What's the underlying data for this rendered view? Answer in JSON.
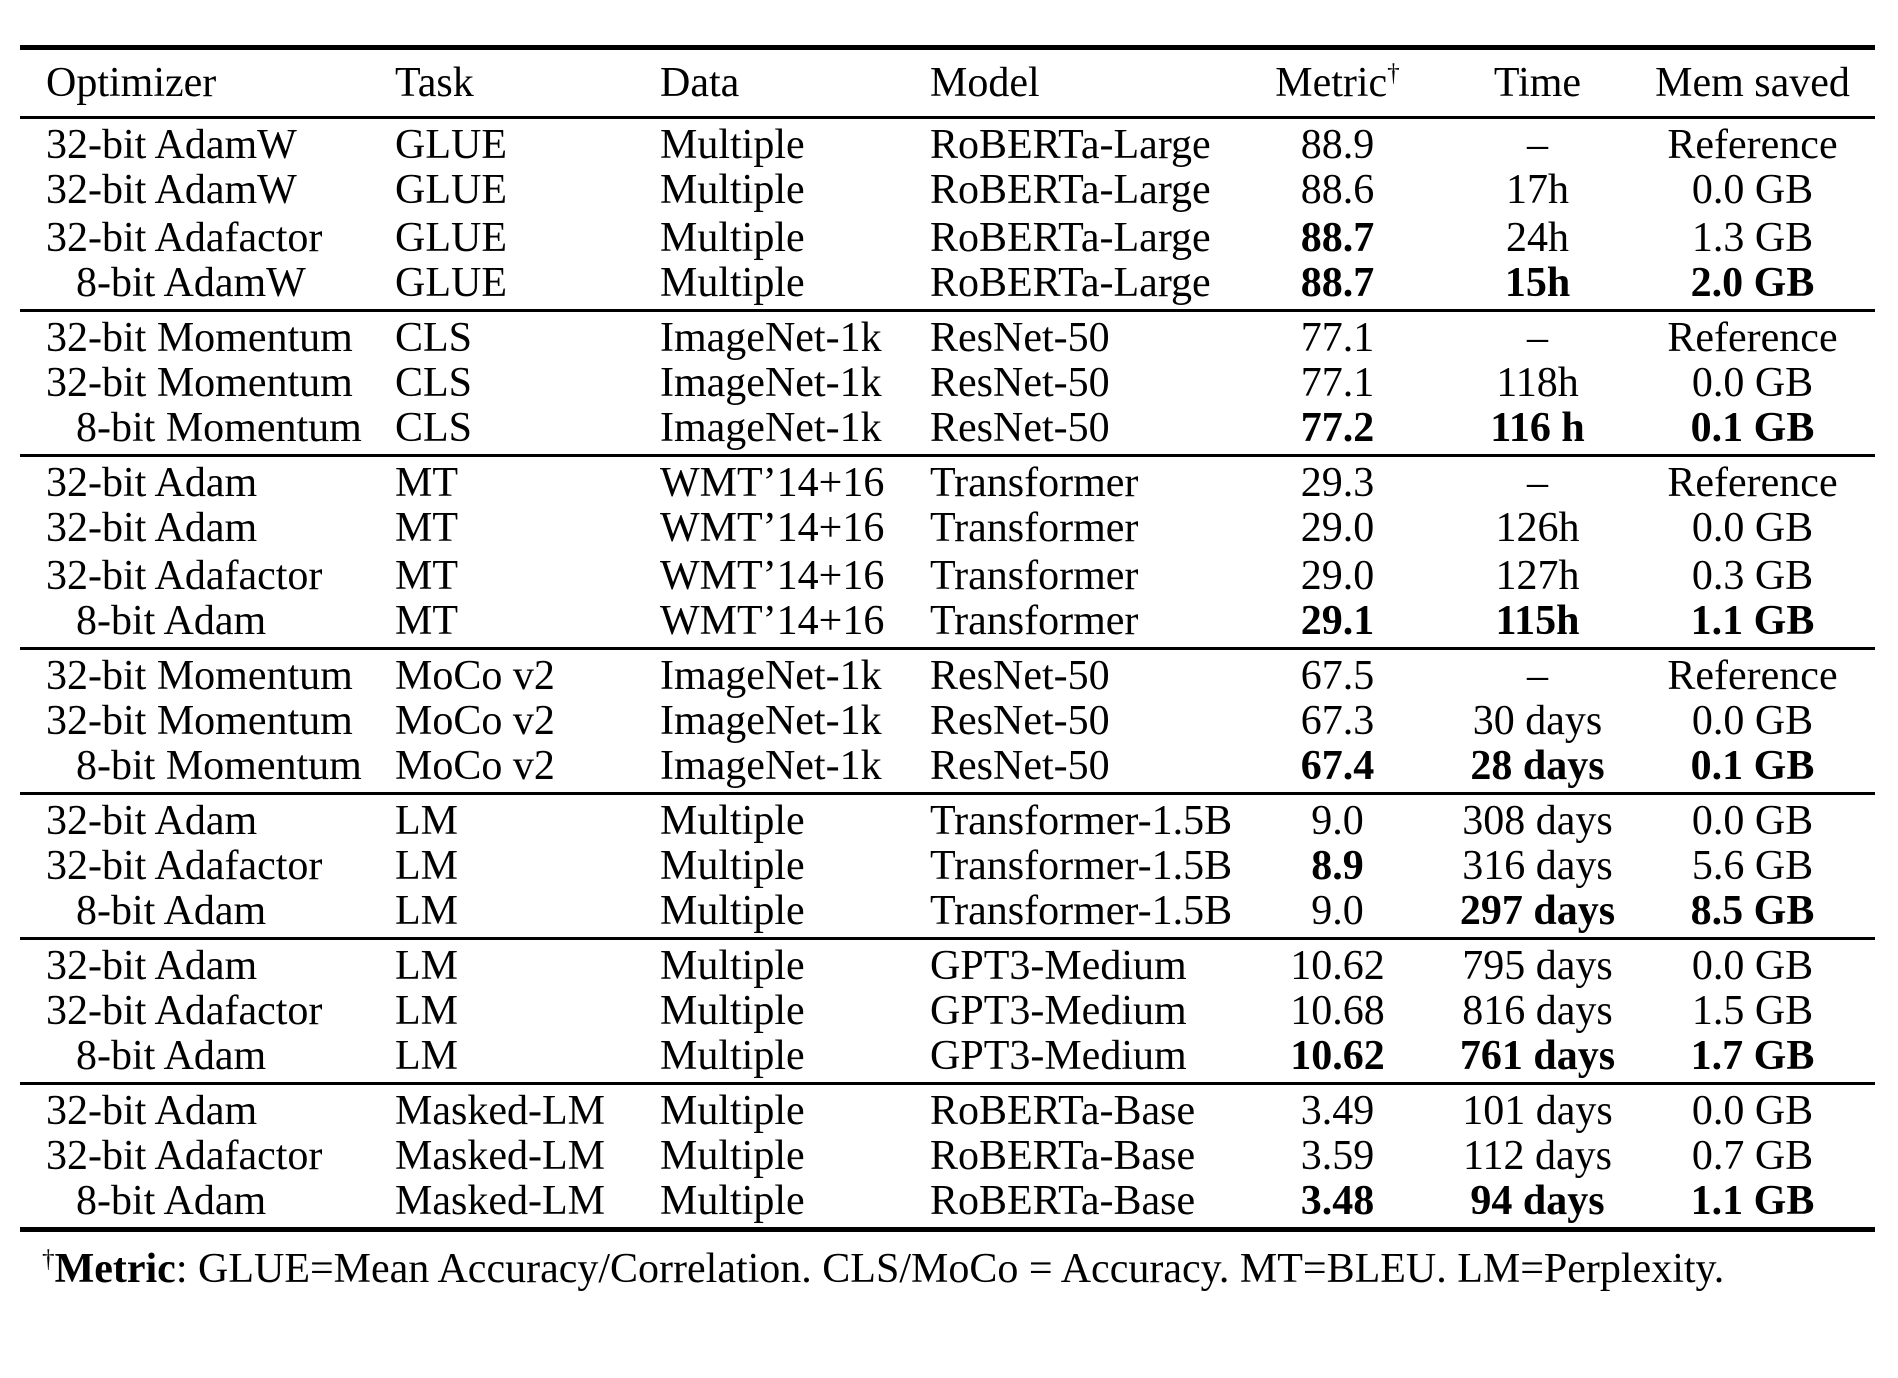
{
  "table": {
    "columns": [
      {
        "label": "Optimizer"
      },
      {
        "label": "Task"
      },
      {
        "label": "Data"
      },
      {
        "label": "Model"
      },
      {
        "label": "Metric",
        "sup": "†"
      },
      {
        "label": "Time"
      },
      {
        "label": "Mem saved"
      }
    ],
    "groups": [
      {
        "rows": [
          {
            "cells": [
              "32-bit AdamW",
              "GLUE",
              "Multiple",
              "RoBERTa-Large",
              "88.9",
              "–",
              "Reference"
            ],
            "bold": []
          },
          {
            "cells": [
              "32-bit AdamW",
              "GLUE",
              "Multiple",
              "RoBERTa-Large",
              "88.6",
              "17h",
              "0.0 GB"
            ],
            "bold": []
          },
          {
            "cells": [
              "32-bit Adafactor",
              "GLUE",
              "Multiple",
              "RoBERTa-Large",
              "88.7",
              "24h",
              "1.3 GB"
            ],
            "bold": [
              4
            ]
          },
          {
            "cells": [
              "8-bit AdamW",
              "GLUE",
              "Multiple",
              "RoBERTa-Large",
              "88.7",
              "15h",
              "2.0 GB"
            ],
            "bold": [
              4,
              5,
              6
            ]
          }
        ]
      },
      {
        "rows": [
          {
            "cells": [
              "32-bit Momentum",
              "CLS",
              "ImageNet-1k",
              "ResNet-50",
              "77.1",
              "–",
              "Reference"
            ],
            "bold": []
          },
          {
            "cells": [
              "32-bit Momentum",
              "CLS",
              "ImageNet-1k",
              "ResNet-50",
              "77.1",
              "118h",
              "0.0 GB"
            ],
            "bold": []
          },
          {
            "cells": [
              "8-bit Momentum",
              "CLS",
              "ImageNet-1k",
              "ResNet-50",
              "77.2",
              "116 h",
              "0.1 GB"
            ],
            "bold": [
              4,
              5,
              6
            ]
          }
        ]
      },
      {
        "rows": [
          {
            "cells": [
              "32-bit Adam",
              "MT",
              "WMT’14+16",
              "Transformer",
              "29.3",
              "–",
              "Reference"
            ],
            "bold": []
          },
          {
            "cells": [
              "32-bit Adam",
              "MT",
              "WMT’14+16",
              "Transformer",
              "29.0",
              "126h",
              "0.0 GB"
            ],
            "bold": []
          },
          {
            "cells": [
              "32-bit Adafactor",
              "MT",
              "WMT’14+16",
              "Transformer",
              "29.0",
              "127h",
              "0.3 GB"
            ],
            "bold": []
          },
          {
            "cells": [
              "8-bit Adam",
              "MT",
              "WMT’14+16",
              "Transformer",
              "29.1",
              "115h",
              "1.1 GB"
            ],
            "bold": [
              4,
              5,
              6
            ]
          }
        ]
      },
      {
        "rows": [
          {
            "cells": [
              "32-bit Momentum",
              "MoCo v2",
              "ImageNet-1k",
              "ResNet-50",
              "67.5",
              "–",
              "Reference"
            ],
            "bold": []
          },
          {
            "cells": [
              "32-bit Momentum",
              "MoCo v2",
              "ImageNet-1k",
              "ResNet-50",
              "67.3",
              "30 days",
              "0.0 GB"
            ],
            "bold": []
          },
          {
            "cells": [
              "8-bit Momentum",
              "MoCo v2",
              "ImageNet-1k",
              "ResNet-50",
              "67.4",
              "28 days",
              "0.1 GB"
            ],
            "bold": [
              4,
              5,
              6
            ]
          }
        ]
      },
      {
        "rows": [
          {
            "cells": [
              "32-bit Adam",
              "LM",
              "Multiple",
              "Transformer-1.5B",
              "9.0",
              "308 days",
              "0.0 GB"
            ],
            "bold": []
          },
          {
            "cells": [
              "32-bit Adafactor",
              "LM",
              "Multiple",
              "Transformer-1.5B",
              "8.9",
              "316 days",
              "5.6 GB"
            ],
            "bold": [
              4
            ]
          },
          {
            "cells": [
              "8-bit Adam",
              "LM",
              "Multiple",
              "Transformer-1.5B",
              "9.0",
              "297 days",
              "8.5 GB"
            ],
            "bold": [
              5,
              6
            ]
          }
        ]
      },
      {
        "rows": [
          {
            "cells": [
              "32-bit Adam",
              "LM",
              "Multiple",
              "GPT3-Medium",
              "10.62",
              "795 days",
              "0.0 GB"
            ],
            "bold": []
          },
          {
            "cells": [
              "32-bit Adafactor",
              "LM",
              "Multiple",
              "GPT3-Medium",
              "10.68",
              "816 days",
              "1.5 GB"
            ],
            "bold": []
          },
          {
            "cells": [
              "8-bit Adam",
              "LM",
              "Multiple",
              "GPT3-Medium",
              "10.62",
              "761 days",
              "1.7 GB"
            ],
            "bold": [
              4,
              5,
              6
            ]
          }
        ]
      },
      {
        "rows": [
          {
            "cells": [
              "32-bit Adam",
              "Masked-LM",
              "Multiple",
              "RoBERTa-Base",
              "3.49",
              "101 days",
              "0.0 GB"
            ],
            "bold": []
          },
          {
            "cells": [
              "32-bit Adafactor",
              "Masked-LM",
              "Multiple",
              "RoBERTa-Base",
              "3.59",
              "112 days",
              "0.7 GB"
            ],
            "bold": []
          },
          {
            "cells": [
              "8-bit Adam",
              "Masked-LM",
              "Multiple",
              "RoBERTa-Base",
              "3.48",
              "94 days",
              "1.1 GB"
            ],
            "bold": [
              4,
              5,
              6
            ]
          }
        ]
      }
    ]
  },
  "footnote": {
    "dagger": "†",
    "label": "Metric",
    "text": ": GLUE=Mean Accuracy/Correlation. CLS/MoCo = Accuracy. MT=BLEU. LM=Perplexity."
  }
}
